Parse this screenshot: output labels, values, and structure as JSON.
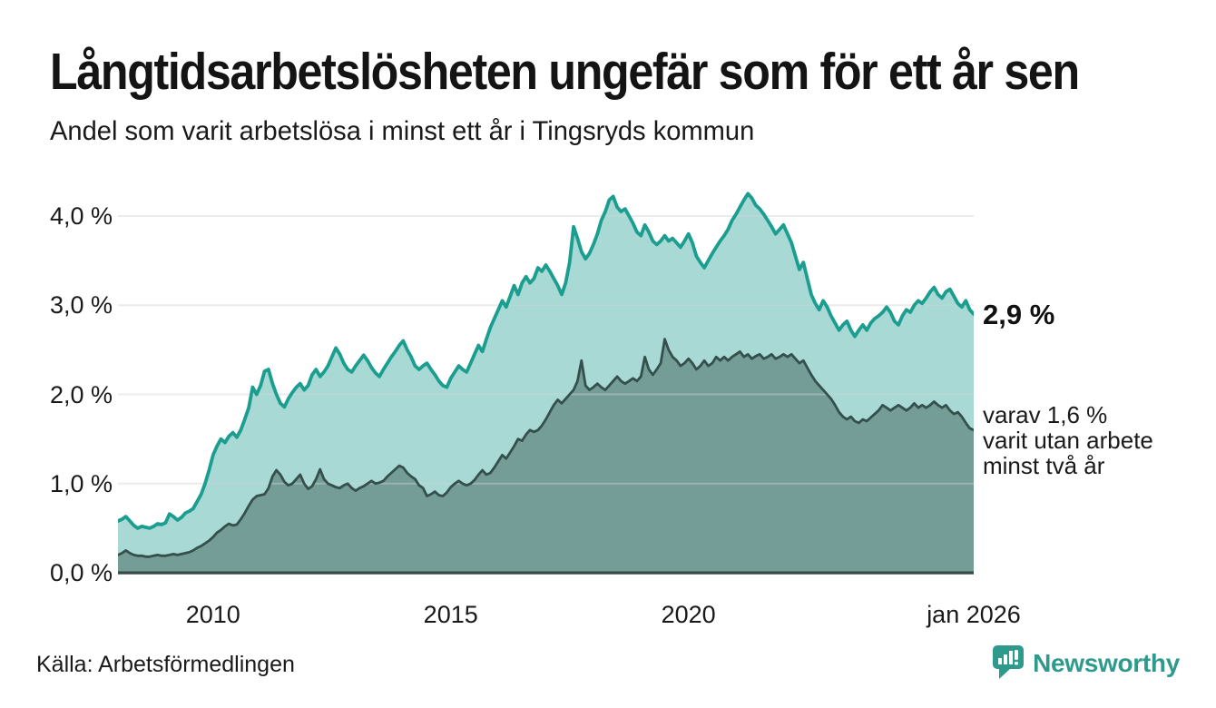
{
  "header": {
    "title": "Långtidsarbetslösheten ungefär som för ett år sen",
    "subtitle": "Andel som varit arbetslösa i minst ett år i Tingsryds kommun"
  },
  "chart_data": {
    "type": "area",
    "title": "Långtidsarbetslösheten ungefär som för ett år sen",
    "subtitle": "Andel som varit arbetslösa i minst ett år i Tingsryds kommun",
    "x_unit": "decimal_year_monthly",
    "x_start": 2008.0,
    "x_step": 0.0833333,
    "x_range": [
      2008.0,
      2026.0
    ],
    "ylim": [
      0,
      4.6
    ],
    "grid": "horizontal",
    "legend": "none",
    "y_ticks": [
      {
        "value": 0,
        "label": "0,0 %"
      },
      {
        "value": 1,
        "label": "1,0 %"
      },
      {
        "value": 2,
        "label": "2,0 %"
      },
      {
        "value": 3,
        "label": "3,0 %"
      },
      {
        "value": 4,
        "label": "4,0 %"
      }
    ],
    "x_ticks": [
      {
        "value": 2010,
        "label": "2010"
      },
      {
        "value": 2015,
        "label": "2015"
      },
      {
        "value": 2020,
        "label": "2020"
      },
      {
        "value": 2026,
        "label": "jan 2026"
      }
    ],
    "series": [
      {
        "id": "arbetslosa-minst-ett-ar",
        "end_value_label": "2,9 %",
        "line_color": "#1b9e8f",
        "fill_color": "rgba(26,156,141,0.38)",
        "line_width": 3.8,
        "values": [
          0.58,
          0.6,
          0.63,
          0.58,
          0.53,
          0.5,
          0.52,
          0.51,
          0.5,
          0.52,
          0.55,
          0.54,
          0.56,
          0.66,
          0.63,
          0.59,
          0.62,
          0.67,
          0.69,
          0.72,
          0.8,
          0.88,
          1.0,
          1.15,
          1.32,
          1.42,
          1.5,
          1.46,
          1.53,
          1.57,
          1.52,
          1.6,
          1.72,
          1.85,
          2.08,
          2.0,
          2.1,
          2.26,
          2.28,
          2.12,
          2.0,
          1.9,
          1.86,
          1.95,
          2.02,
          2.08,
          2.12,
          2.05,
          2.1,
          2.22,
          2.28,
          2.2,
          2.25,
          2.32,
          2.42,
          2.52,
          2.45,
          2.35,
          2.28,
          2.25,
          2.32,
          2.38,
          2.44,
          2.38,
          2.3,
          2.24,
          2.2,
          2.28,
          2.35,
          2.42,
          2.48,
          2.55,
          2.6,
          2.5,
          2.42,
          2.32,
          2.28,
          2.32,
          2.35,
          2.28,
          2.22,
          2.15,
          2.1,
          2.08,
          2.18,
          2.25,
          2.32,
          2.28,
          2.25,
          2.35,
          2.45,
          2.55,
          2.48,
          2.62,
          2.75,
          2.85,
          2.95,
          3.05,
          2.98,
          3.1,
          3.22,
          3.12,
          3.25,
          3.32,
          3.25,
          3.3,
          3.42,
          3.38,
          3.45,
          3.38,
          3.3,
          3.22,
          3.12,
          3.25,
          3.48,
          3.88,
          3.75,
          3.6,
          3.52,
          3.58,
          3.68,
          3.8,
          3.95,
          4.05,
          4.18,
          4.22,
          4.1,
          4.05,
          4.08,
          4.0,
          3.92,
          3.82,
          3.78,
          3.9,
          3.82,
          3.72,
          3.68,
          3.72,
          3.78,
          3.72,
          3.75,
          3.7,
          3.65,
          3.72,
          3.8,
          3.7,
          3.55,
          3.48,
          3.42,
          3.5,
          3.58,
          3.65,
          3.72,
          3.78,
          3.85,
          3.95,
          4.02,
          4.1,
          4.18,
          4.25,
          4.2,
          4.12,
          4.08,
          4.02,
          3.95,
          3.88,
          3.8,
          3.85,
          3.9,
          3.8,
          3.7,
          3.55,
          3.4,
          3.48,
          3.3,
          3.12,
          3.02,
          2.95,
          3.05,
          2.98,
          2.88,
          2.8,
          2.72,
          2.78,
          2.82,
          2.72,
          2.65,
          2.72,
          2.78,
          2.72,
          2.8,
          2.85,
          2.88,
          2.92,
          2.98,
          2.92,
          2.82,
          2.78,
          2.88,
          2.95,
          2.92,
          3.0,
          3.05,
          3.02,
          3.08,
          3.15,
          3.2,
          3.12,
          3.08,
          3.15,
          3.18,
          3.1,
          3.02,
          2.98,
          3.05,
          2.95,
          2.9
        ]
      },
      {
        "id": "arbetslosa-minst-tva-ar",
        "end_value_label": "varav 1,6 % varit utan arbete minst två år",
        "line_color": "#34504c",
        "fill_color": "rgba(45,75,70,0.42)",
        "line_width": 2.8,
        "values": [
          0.2,
          0.22,
          0.25,
          0.22,
          0.2,
          0.19,
          0.19,
          0.18,
          0.18,
          0.19,
          0.2,
          0.19,
          0.19,
          0.2,
          0.21,
          0.2,
          0.21,
          0.22,
          0.23,
          0.25,
          0.28,
          0.3,
          0.33,
          0.36,
          0.4,
          0.45,
          0.48,
          0.52,
          0.55,
          0.53,
          0.54,
          0.6,
          0.67,
          0.75,
          0.82,
          0.86,
          0.87,
          0.88,
          0.95,
          1.08,
          1.15,
          1.1,
          1.02,
          0.98,
          1.0,
          1.05,
          1.1,
          1.0,
          0.94,
          0.97,
          1.05,
          1.16,
          1.05,
          1.0,
          0.98,
          0.96,
          0.95,
          0.98,
          1.0,
          0.95,
          0.92,
          0.95,
          0.97,
          1.0,
          1.03,
          1.0,
          1.01,
          1.03,
          1.08,
          1.12,
          1.16,
          1.2,
          1.18,
          1.12,
          1.08,
          1.05,
          0.98,
          0.95,
          0.86,
          0.88,
          0.91,
          0.87,
          0.86,
          0.9,
          0.96,
          1.0,
          1.03,
          1.0,
          0.98,
          1.0,
          1.04,
          1.1,
          1.15,
          1.1,
          1.12,
          1.18,
          1.25,
          1.32,
          1.28,
          1.35,
          1.42,
          1.5,
          1.48,
          1.55,
          1.6,
          1.58,
          1.6,
          1.65,
          1.72,
          1.8,
          1.88,
          1.94,
          1.9,
          1.95,
          2.0,
          2.05,
          2.15,
          2.38,
          2.1,
          2.05,
          2.08,
          2.12,
          2.08,
          2.05,
          2.1,
          2.15,
          2.2,
          2.15,
          2.12,
          2.15,
          2.18,
          2.15,
          2.2,
          2.42,
          2.28,
          2.22,
          2.28,
          2.35,
          2.62,
          2.5,
          2.42,
          2.38,
          2.32,
          2.35,
          2.4,
          2.35,
          2.28,
          2.32,
          2.38,
          2.32,
          2.35,
          2.42,
          2.38,
          2.42,
          2.38,
          2.42,
          2.45,
          2.48,
          2.42,
          2.45,
          2.4,
          2.43,
          2.45,
          2.4,
          2.42,
          2.45,
          2.4,
          2.42,
          2.45,
          2.42,
          2.45,
          2.4,
          2.35,
          2.38,
          2.3,
          2.22,
          2.15,
          2.1,
          2.05,
          2.0,
          1.95,
          1.88,
          1.8,
          1.75,
          1.72,
          1.75,
          1.7,
          1.68,
          1.72,
          1.7,
          1.74,
          1.78,
          1.82,
          1.88,
          1.85,
          1.82,
          1.85,
          1.88,
          1.85,
          1.82,
          1.85,
          1.9,
          1.85,
          1.88,
          1.85,
          1.88,
          1.92,
          1.88,
          1.85,
          1.88,
          1.82,
          1.78,
          1.8,
          1.75,
          1.68,
          1.62,
          1.6
        ]
      }
    ],
    "colors": {
      "gridline": "#e3e3e3",
      "gridline_overlay": "rgba(255,255,255,0.32)",
      "axis_line": "#364945",
      "text": "#1a1a1a"
    }
  },
  "annotations": {
    "primary": {
      "label": "2,9 %"
    },
    "secondary": {
      "lines": [
        "varav 1,6 %",
        "varit utan arbete",
        "minst två år"
      ]
    }
  },
  "footer": {
    "source": "Källa: Arbetsförmedlingen",
    "brand": "Newsworthy"
  }
}
